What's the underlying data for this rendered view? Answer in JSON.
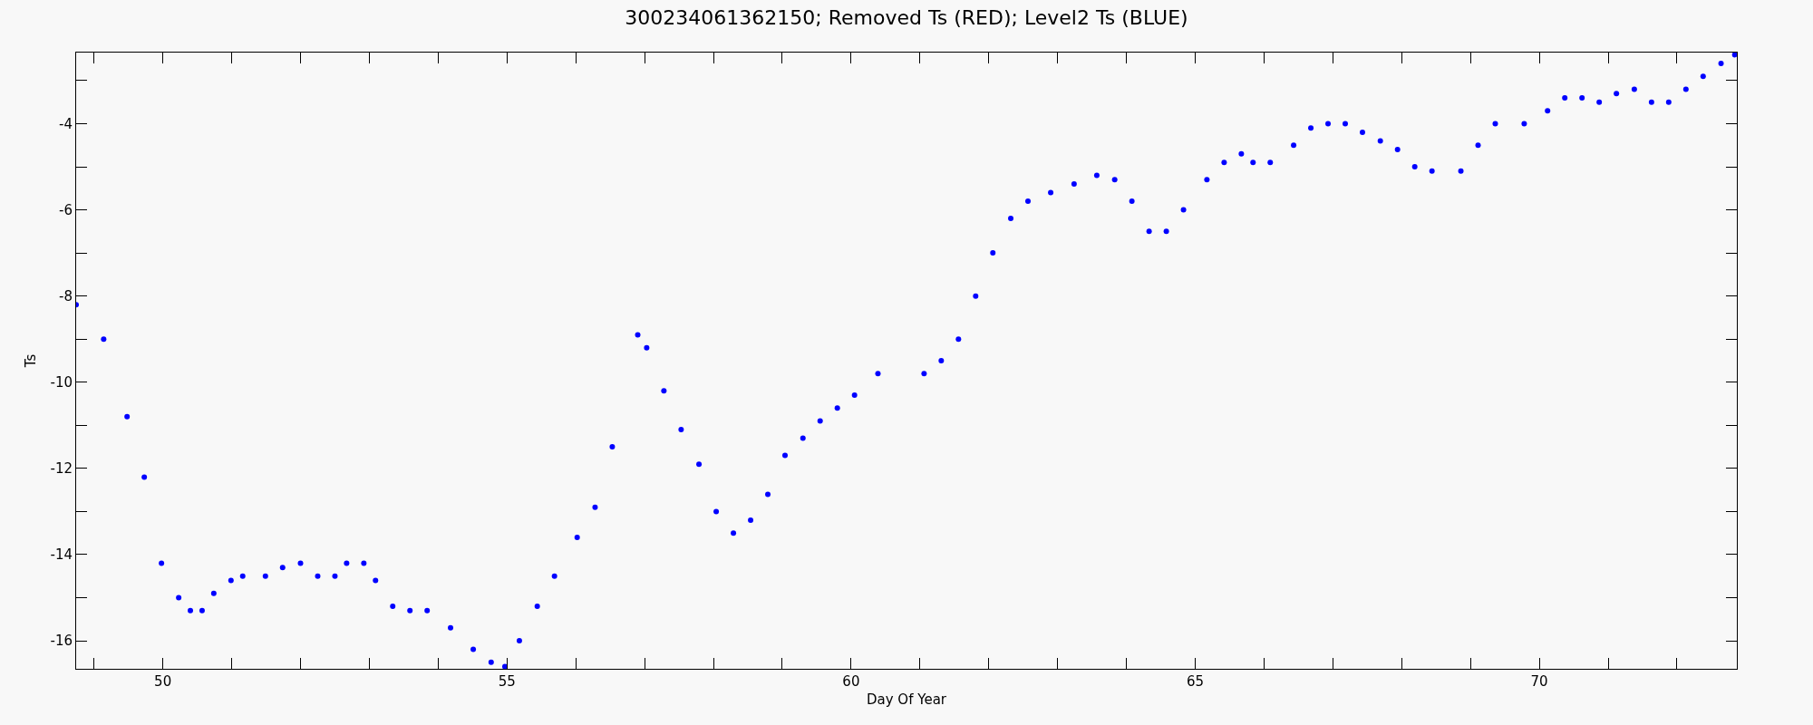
{
  "chart_data": {
    "type": "scatter",
    "title": "300234061362150; Removed Ts (RED); Level2 Ts (BLUE)",
    "xlabel": "Day Of Year",
    "ylabel": "Ts",
    "marker": "circle",
    "xlim": [
      48.74,
      72.87
    ],
    "ylim": [
      -16.65,
      -2.35
    ],
    "xticks": [
      {
        "value": 49,
        "label": null
      },
      50,
      {
        "value": 51,
        "label": null
      },
      {
        "value": 52,
        "label": null
      },
      {
        "value": 53,
        "label": null
      },
      {
        "value": 54,
        "label": null
      },
      55,
      {
        "value": 56,
        "label": null
      },
      {
        "value": 57,
        "label": null
      },
      {
        "value": 58,
        "label": null
      },
      {
        "value": 59,
        "label": null
      },
      60,
      {
        "value": 61,
        "label": null
      },
      {
        "value": 62,
        "label": null
      },
      {
        "value": 63,
        "label": null
      },
      {
        "value": 64,
        "label": null
      },
      65,
      {
        "value": 66,
        "label": null
      },
      {
        "value": 67,
        "label": null
      },
      {
        "value": 68,
        "label": null
      },
      {
        "value": 69,
        "label": null
      },
      70,
      {
        "value": 71,
        "label": null
      },
      {
        "value": 72,
        "label": null
      }
    ],
    "yticks": [
      -16,
      {
        "value": -15,
        "label": null
      },
      -14,
      {
        "value": -13,
        "label": null
      },
      -12,
      {
        "value": -11,
        "label": null
      },
      -10,
      {
        "value": -9,
        "label": null
      },
      -8,
      {
        "value": -7,
        "label": null
      },
      -6,
      {
        "value": -5,
        "label": null
      },
      -4,
      {
        "value": -3,
        "label": null
      }
    ],
    "series": [
      {
        "color": "#0000ff",
        "x": [
          48.74,
          49.14,
          49.48,
          49.73,
          49.98,
          50.23,
          50.4,
          50.57,
          50.74,
          50.99,
          51.16,
          51.49,
          51.74,
          52.0,
          52.25,
          52.5,
          52.67,
          52.92,
          53.09,
          53.34,
          53.59,
          53.84,
          54.18,
          54.51,
          54.77,
          54.97,
          55.18,
          55.44,
          55.69,
          56.02,
          56.28,
          56.53,
          56.9,
          57.03,
          57.28,
          57.53,
          57.79,
          58.04,
          58.29,
          58.54,
          58.79,
          59.04,
          59.3,
          59.55,
          59.8,
          60.05,
          60.39,
          61.06,
          61.31,
          61.56,
          61.81,
          62.06,
          62.32,
          62.57,
          62.9,
          63.24,
          63.57,
          63.83,
          64.08,
          64.33,
          64.58,
          64.83,
          65.17,
          65.42,
          65.67,
          65.84,
          66.09,
          66.43,
          66.68,
          66.93,
          67.18,
          67.43,
          67.69,
          67.94,
          68.19,
          68.44,
          68.86,
          69.11,
          69.36,
          69.78,
          70.12,
          70.37,
          70.62,
          70.87,
          71.12,
          71.38,
          71.63,
          71.88,
          72.13,
          72.38,
          72.64,
          72.84
        ],
        "values": [
          -8.2,
          -9.0,
          -10.8,
          -12.2,
          -14.2,
          -15.0,
          -15.3,
          -15.3,
          -14.9,
          -14.6,
          -14.5,
          -14.5,
          -14.3,
          -14.2,
          -14.5,
          -14.5,
          -14.2,
          -14.2,
          -14.6,
          -15.2,
          -15.3,
          -15.3,
          -15.7,
          -16.2,
          -16.5,
          -16.6,
          -16.0,
          -15.2,
          -14.5,
          -13.6,
          -12.9,
          -11.5,
          -8.9,
          -9.2,
          -10.2,
          -11.1,
          -11.9,
          -13.0,
          -13.5,
          -13.2,
          -12.6,
          -11.7,
          -11.3,
          -10.9,
          -10.6,
          -10.3,
          -9.8,
          -9.8,
          -9.5,
          -9.0,
          -8.0,
          -7.0,
          -6.2,
          -5.8,
          -5.6,
          -5.4,
          -5.2,
          -5.3,
          -5.8,
          -6.5,
          -6.5,
          -6.0,
          -5.3,
          -4.9,
          -4.7,
          -4.9,
          -4.9,
          -4.5,
          -4.1,
          -4.0,
          -4.0,
          -4.2,
          -4.4,
          -4.6,
          -5.0,
          -5.1,
          -5.1,
          -4.5,
          -4.0,
          -4.0,
          -3.7,
          -3.4,
          -3.4,
          -3.5,
          -3.3,
          -3.2,
          -3.5,
          -3.5,
          -3.2,
          -2.9,
          -2.6,
          -2.4
        ]
      }
    ]
  }
}
